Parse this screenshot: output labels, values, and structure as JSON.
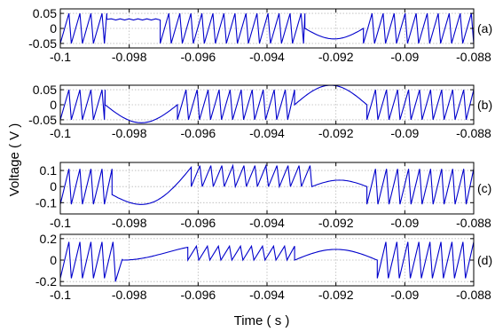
{
  "figure": {
    "ylabel": "Voltage ( V )",
    "xlabel": "Time ( s )"
  },
  "chart_data": [
    {
      "type": "line",
      "panel_label": "(a)",
      "series_color": "#0000cc",
      "grid": "dotted",
      "xlim": [
        -0.1,
        -0.088
      ],
      "ylim": [
        -0.065,
        0.065
      ],
      "xticks": [
        -0.1,
        -0.098,
        -0.096,
        -0.094,
        -0.092,
        -0.09,
        -0.088
      ],
      "xtick_labels": [
        "-0.1",
        "-0.098",
        "-0.096",
        "-0.094",
        "-0.092",
        "-0.09",
        "-0.088"
      ],
      "yticks": [
        0.05,
        0,
        -0.05
      ],
      "ytick_labels": [
        "0.05",
        "0",
        "-0.05"
      ],
      "segments": [
        {
          "kind": "sawtooth",
          "x": [
            -0.1,
            -0.09865
          ],
          "amp": 0.05,
          "period": 0.00032
        },
        {
          "kind": "flat",
          "x": [
            -0.09865,
            -0.0971
          ],
          "level": 0.03
        },
        {
          "kind": "sawtooth",
          "x": [
            -0.0971,
            -0.0929
          ],
          "amp": 0.05,
          "period": 0.00032
        },
        {
          "kind": "sag",
          "x": [
            -0.0929,
            -0.0912
          ],
          "level": -0.035
        },
        {
          "kind": "sawtooth",
          "x": [
            -0.0912,
            -0.088
          ],
          "amp": 0.05,
          "period": 0.00032
        }
      ]
    },
    {
      "type": "line",
      "panel_label": "(b)",
      "series_color": "#0000cc",
      "grid": "dotted",
      "xlim": [
        -0.1,
        -0.088
      ],
      "ylim": [
        -0.065,
        0.065
      ],
      "xticks": [
        -0.1,
        -0.098,
        -0.096,
        -0.094,
        -0.092,
        -0.09,
        -0.088
      ],
      "xtick_labels": [
        "-0.1",
        "-0.098",
        "-0.096",
        "-0.094",
        "-0.092",
        "-0.09",
        "-0.088"
      ],
      "yticks": [
        0.05,
        0,
        -0.05
      ],
      "ytick_labels": [
        "0.05",
        "0",
        "-0.05"
      ],
      "segments": [
        {
          "kind": "sawtooth",
          "x": [
            -0.1,
            -0.0987
          ],
          "amp": 0.05,
          "period": 0.00032
        },
        {
          "kind": "sag",
          "x": [
            -0.0987,
            -0.0966
          ],
          "level": -0.06
        },
        {
          "kind": "sawtooth",
          "x": [
            -0.0966,
            -0.0932
          ],
          "amp": 0.05,
          "period": 0.00032
        },
        {
          "kind": "hump",
          "x": [
            -0.0932,
            -0.0911
          ],
          "level": 0.065
        },
        {
          "kind": "sawtooth",
          "x": [
            -0.0911,
            -0.088
          ],
          "amp": 0.05,
          "period": 0.00032
        }
      ]
    },
    {
      "type": "line",
      "panel_label": "(c)",
      "series_color": "#0000cc",
      "grid": "dotted",
      "xlim": [
        -0.1,
        -0.088
      ],
      "ylim": [
        -0.17,
        0.15
      ],
      "xticks": [
        -0.1,
        -0.098,
        -0.096,
        -0.094,
        -0.092,
        -0.09,
        -0.088
      ],
      "xtick_labels": [
        "-0.1",
        "-0.098",
        "-0.096",
        "-0.094",
        "-0.092",
        "-0.09",
        "-0.088"
      ],
      "yticks": [
        0.1,
        0,
        -0.1
      ],
      "ytick_labels": [
        "0.1",
        "0",
        "-0.1"
      ],
      "segments": [
        {
          "kind": "sawtooth",
          "x": [
            -0.1,
            -0.0985
          ],
          "amp": 0.11,
          "period": 0.00032
        },
        {
          "kind": "dip",
          "x": [
            -0.0985,
            -0.0962
          ],
          "from": -0.05,
          "low": -0.1,
          "to": 0.12
        },
        {
          "kind": "sawtooth_up",
          "x": [
            -0.0962,
            -0.0927
          ],
          "lo": 0.0,
          "hi": 0.13,
          "period": 0.00032
        },
        {
          "kind": "hump",
          "x": [
            -0.0927,
            -0.0911
          ],
          "level": 0.04
        },
        {
          "kind": "sawtooth",
          "x": [
            -0.0911,
            -0.088
          ],
          "amp": 0.11,
          "period": 0.00032
        }
      ]
    },
    {
      "type": "line",
      "panel_label": "(d)",
      "series_color": "#0000cc",
      "grid": "dotted",
      "xlim": [
        -0.1,
        -0.088
      ],
      "ylim": [
        -0.24,
        0.24
      ],
      "xticks": [
        -0.1,
        -0.098,
        -0.096,
        -0.094,
        -0.092,
        -0.09,
        -0.088
      ],
      "xtick_labels": [
        "-0.1",
        "-0.098",
        "-0.096",
        "-0.094",
        "-0.092",
        "-0.09",
        "-0.088"
      ],
      "yticks": [
        0.2,
        0,
        -0.2
      ],
      "ytick_labels": [
        "0.2",
        "0",
        "-0.2"
      ],
      "segments": [
        {
          "kind": "sawtooth",
          "x": [
            -0.1,
            -0.0984
          ],
          "amp": 0.17,
          "period": 0.00032
        },
        {
          "kind": "ramp",
          "x": [
            -0.0984,
            -0.0982
          ],
          "from": -0.2,
          "to": 0.01
        },
        {
          "kind": "rise",
          "x": [
            -0.0982,
            -0.0963
          ],
          "from": 0.0,
          "to": 0.12
        },
        {
          "kind": "sawtooth_up",
          "x": [
            -0.0963,
            -0.0932
          ],
          "lo": 0.0,
          "hi": 0.13,
          "period": 0.00032
        },
        {
          "kind": "hump",
          "x": [
            -0.0932,
            -0.0908
          ],
          "level": 0.1
        },
        {
          "kind": "sawtooth",
          "x": [
            -0.0908,
            -0.088
          ],
          "amp": 0.17,
          "period": 0.00032
        }
      ]
    }
  ]
}
